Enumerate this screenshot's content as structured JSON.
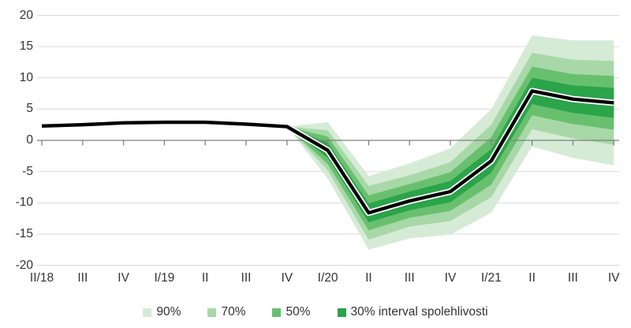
{
  "chart_data": {
    "type": "line",
    "subtype": "fan-chart-with-confidence-bands",
    "title": "",
    "xlabel": "",
    "ylabel": "",
    "categories": [
      "II/18",
      "III",
      "IV",
      "I/19",
      "II",
      "III",
      "IV",
      "I/20",
      "II",
      "III",
      "IV",
      "I/21",
      "II",
      "III",
      "IV"
    ],
    "series": [
      {
        "name": "central-forecast-line",
        "values": [
          2.3,
          2.5,
          2.8,
          2.9,
          2.9,
          2.6,
          2.2,
          -1.6,
          -11.6,
          -9.7,
          -8.2,
          -3.3,
          7.9,
          6.6,
          6.0
        ]
      }
    ],
    "forecast_start_index": 6,
    "bands": [
      {
        "level": "90%",
        "color": "#d5ebd5",
        "half_widths": [
          0,
          4.5,
          5.9,
          6.0,
          6.9,
          8.3,
          8.9,
          9.4,
          10.0
        ]
      },
      {
        "level": "70%",
        "color": "#a8d8a8",
        "half_widths": [
          0,
          3.2,
          4.3,
          4.1,
          4.7,
          5.8,
          6.1,
          6.3,
          6.7
        ]
      },
      {
        "level": "50%",
        "color": "#68c06f",
        "half_widths": [
          0,
          2.2,
          2.8,
          2.7,
          3.1,
          3.8,
          3.9,
          4.0,
          4.3
        ]
      },
      {
        "level": "30%",
        "color": "#2ba44a",
        "half_widths": [
          0,
          1.2,
          1.5,
          1.5,
          1.7,
          1.9,
          2.1,
          2.2,
          2.4
        ]
      }
    ],
    "ylim": [
      -20,
      20
    ],
    "y_tick_interval": 5,
    "y_tick_labels": [
      "20",
      "15",
      "10",
      "5",
      "0",
      "-5",
      "-10",
      "-15",
      "-20"
    ],
    "y_tick_values": [
      20,
      15,
      10,
      5,
      0,
      -5,
      -10,
      -15,
      -20
    ],
    "grid": "horizontal",
    "legend_position": "bottom",
    "legend": {
      "items": [
        {
          "label": "90%",
          "color": "#d5ebd5"
        },
        {
          "label": "70%",
          "color": "#a8d8a8"
        },
        {
          "label": "50%",
          "color": "#68c06f"
        },
        {
          "label": "30% interval spolehlivosti",
          "color": "#2ba44a"
        }
      ]
    },
    "colors": {
      "line": "#000000",
      "line_casing": "#ffffff",
      "gridline": "#d9d9d9",
      "zero_axis": "#7f7f7f",
      "text": "#333333",
      "background": "#ffffff"
    }
  }
}
